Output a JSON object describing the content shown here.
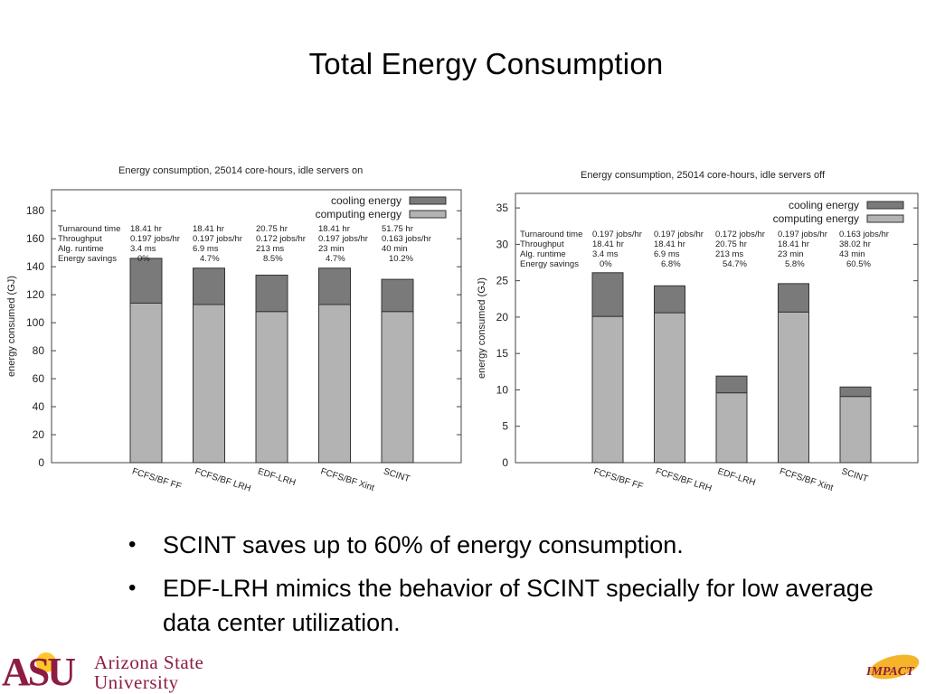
{
  "slide": {
    "title": "Total Energy Consumption",
    "bullets": [
      "SCINT saves up to 60% of energy consumption.",
      "EDF-LRH mimics the behavior of SCINT specially for low average data center utilization."
    ]
  },
  "logos": {
    "asu_mark": "ASU",
    "asu_line1": "Arizona State",
    "asu_line2": "University",
    "impact": "IMPACT"
  },
  "colors": {
    "computing": "#b3b3b3",
    "cooling": "#7a7a7a",
    "asu_maroon": "#8c1d40",
    "asu_gold": "#ffc627"
  },
  "chart_data": [
    {
      "type": "bar",
      "stacked": true,
      "title": "Energy consumption, 25014 core-hours, idle servers on",
      "ylabel": "energy consumed (GJ)",
      "xlabel": "",
      "ylim": [
        0,
        195
      ],
      "yticks": [
        0,
        20,
        40,
        60,
        80,
        100,
        120,
        140,
        160,
        180
      ],
      "categories": [
        "FCFS/BF FF",
        "FCFS/BF LRH",
        "EDF-LRH",
        "FCFS/BF Xint",
        "SCINT"
      ],
      "series": [
        {
          "name": "computing energy",
          "values": [
            114,
            113,
            108,
            113,
            108
          ]
        },
        {
          "name": "cooling energy",
          "values": [
            32,
            26,
            26,
            26,
            23
          ]
        }
      ],
      "legend": "top-right",
      "table": {
        "row_labels": [
          "Turnaround time",
          "Throughput",
          "Alg. runtime",
          "Energy savings"
        ],
        "columns": [
          [
            "18.41 hr",
            "0.197 jobs/hr",
            "3.4 ms",
            "0%"
          ],
          [
            "18.41 hr",
            "0.197 jobs/hr",
            "6.9 ms",
            "4.7%"
          ],
          [
            "20.75 hr",
            "0.172 jobs/hr",
            "213 ms",
            "8.5%"
          ],
          [
            "18.41 hr",
            "0.197 jobs/hr",
            "23 min",
            "4.7%"
          ],
          [
            "51.75 hr",
            "0.163 jobs/hr",
            "40 min",
            "10.2%"
          ]
        ]
      }
    },
    {
      "type": "bar",
      "stacked": true,
      "title": "Energy consumption, 25014 core-hours, idle servers off",
      "ylabel": "energy consumed (GJ)",
      "xlabel": "",
      "ylim": [
        0,
        37
      ],
      "yticks": [
        0,
        5,
        10,
        15,
        20,
        25,
        30,
        35
      ],
      "categories": [
        "FCFS/BF FF",
        "FCFS/BF LRH",
        "EDF-LRH",
        "FCFS/BF Xint",
        "SCINT"
      ],
      "series": [
        {
          "name": "computing energy",
          "values": [
            20.1,
            20.6,
            9.6,
            20.7,
            9.1
          ]
        },
        {
          "name": "cooling energy",
          "values": [
            6.0,
            3.7,
            2.3,
            3.9,
            1.3
          ]
        }
      ],
      "legend": "top-right",
      "table": {
        "row_labels": [
          "Turnaround time",
          "Throughput",
          "Alg. runtime",
          "Energy savings"
        ],
        "columns": [
          [
            "0.197 jobs/hr",
            "18.41 hr",
            "3.4 ms",
            "0%"
          ],
          [
            "0.197 jobs/hr",
            "18.41 hr",
            "6.9 ms",
            "6.8%"
          ],
          [
            "0.172 jobs/hr",
            "20.75 hr",
            "213 ms",
            "54.7%"
          ],
          [
            "0.197 jobs/hr",
            "18.41 hr",
            "23 min",
            "5.8%"
          ],
          [
            "0.163 jobs/hr",
            "38.02 hr",
            "43 min",
            "60.5%"
          ]
        ]
      }
    }
  ]
}
